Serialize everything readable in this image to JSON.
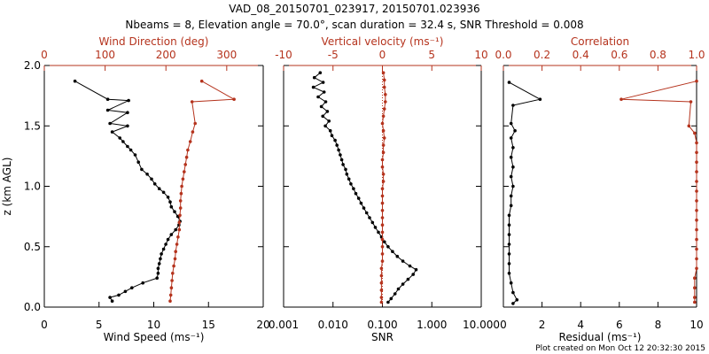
{
  "title_line1": "VAD_08_20150701_023917, 20150701.023936",
  "title_line2": "Nbeams = 8, Elevation angle = 70.0°, scan duration = 32.4 s, SNR Threshold = 0.008",
  "footer": "Plot created on Mon Oct 12 20:32:30 2015",
  "colors": {
    "black": "#000000",
    "red": "#b5331d"
  },
  "chart_data": [
    {
      "type": "scatter",
      "panel": "wind",
      "ylabel": "z (km AGL)",
      "ylim": [
        0,
        2.0
      ],
      "yticks": [
        "0.0",
        "0.5",
        "1.0",
        "1.5",
        "2.0"
      ],
      "bottom_axis": {
        "label": "Wind Speed (ms⁻¹)",
        "lim": [
          0,
          20
        ],
        "ticks": [
          "0",
          "5",
          "10",
          "15",
          "20"
        ]
      },
      "top_axis": {
        "label": "Wind Direction (deg)",
        "lim": [
          0,
          360
        ],
        "ticks": [
          "0",
          "100",
          "200",
          "300"
        ]
      },
      "series": [
        {
          "name": "Wind Speed",
          "color": "black",
          "axis": "bottom",
          "points": [
            [
              2.8,
              1.87
            ],
            [
              5.8,
              1.72
            ],
            [
              7.7,
              1.71
            ],
            [
              5.8,
              1.63
            ],
            [
              7.6,
              1.61
            ],
            [
              6.0,
              1.52
            ],
            [
              7.6,
              1.5
            ],
            [
              6.2,
              1.45
            ],
            [
              6.9,
              1.4
            ],
            [
              7.2,
              1.37
            ],
            [
              7.6,
              1.33
            ],
            [
              7.9,
              1.3
            ],
            [
              8.3,
              1.26
            ],
            [
              8.6,
              1.2
            ],
            [
              8.9,
              1.14
            ],
            [
              9.4,
              1.1
            ],
            [
              9.8,
              1.06
            ],
            [
              10.1,
              1.02
            ],
            [
              10.5,
              0.98
            ],
            [
              10.9,
              0.95
            ],
            [
              11.3,
              0.91
            ],
            [
              11.5,
              0.87
            ],
            [
              11.6,
              0.83
            ],
            [
              11.9,
              0.79
            ],
            [
              12.2,
              0.75
            ],
            [
              12.4,
              0.71
            ],
            [
              12.3,
              0.68
            ],
            [
              12.0,
              0.64
            ],
            [
              11.6,
              0.6
            ],
            [
              11.3,
              0.56
            ],
            [
              11.1,
              0.52
            ],
            [
              10.9,
              0.48
            ],
            [
              10.7,
              0.44
            ],
            [
              10.6,
              0.4
            ],
            [
              10.5,
              0.36
            ],
            [
              10.4,
              0.32
            ],
            [
              10.4,
              0.28
            ],
            [
              10.3,
              0.24
            ],
            [
              9.0,
              0.2
            ],
            [
              8.0,
              0.16
            ],
            [
              7.4,
              0.13
            ],
            [
              6.8,
              0.1
            ],
            [
              6.0,
              0.08
            ],
            [
              6.2,
              0.05
            ]
          ]
        },
        {
          "name": "Wind Direction",
          "color": "red",
          "axis": "top",
          "points": [
            [
              259,
              1.87
            ],
            [
              312,
              1.72
            ],
            [
              243,
              1.7
            ],
            [
              248,
              1.52
            ],
            [
              244,
              1.45
            ],
            [
              240,
              1.37
            ],
            [
              236,
              1.3
            ],
            [
              234,
              1.24
            ],
            [
              232,
              1.18
            ],
            [
              230,
              1.12
            ],
            [
              228,
              1.06
            ],
            [
              226,
              1.0
            ],
            [
              225,
              0.94
            ],
            [
              224,
              0.88
            ],
            [
              224,
              0.82
            ],
            [
              223,
              0.76
            ],
            [
              222,
              0.7
            ],
            [
              222,
              0.64
            ],
            [
              220,
              0.58
            ],
            [
              218,
              0.52
            ],
            [
              216,
              0.46
            ],
            [
              215,
              0.4
            ],
            [
              213,
              0.34
            ],
            [
              211,
              0.28
            ],
            [
              210,
              0.22
            ],
            [
              209,
              0.16
            ],
            [
              208,
              0.1
            ],
            [
              207,
              0.05
            ]
          ]
        }
      ]
    },
    {
      "type": "scatter",
      "panel": "vertical",
      "ylim": [
        0,
        2.0
      ],
      "bottom_axis": {
        "label": "SNR",
        "scale": "log",
        "lim": [
          0.001,
          10
        ],
        "ticks": [
          "0.001",
          "0.010",
          "0.100",
          "1.000",
          "10.000"
        ]
      },
      "top_axis": {
        "label": "Vertical velocity (ms⁻¹)",
        "lim": [
          -10,
          10
        ],
        "ticks": [
          "-10",
          "-5",
          "0",
          "5",
          "10"
        ]
      },
      "series": [
        {
          "name": "SNR",
          "color": "black",
          "axis": "bottom",
          "points": [
            [
              0.0055,
              1.94
            ],
            [
              0.0042,
              1.9
            ],
            [
              0.0063,
              1.86
            ],
            [
              0.004,
              1.82
            ],
            [
              0.0066,
              1.78
            ],
            [
              0.005,
              1.74
            ],
            [
              0.0071,
              1.7
            ],
            [
              0.0058,
              1.66
            ],
            [
              0.0077,
              1.62
            ],
            [
              0.0062,
              1.58
            ],
            [
              0.0083,
              1.54
            ],
            [
              0.007,
              1.5
            ],
            [
              0.0088,
              1.46
            ],
            [
              0.0095,
              1.42
            ],
            [
              0.011,
              1.38
            ],
            [
              0.012,
              1.34
            ],
            [
              0.013,
              1.3
            ],
            [
              0.014,
              1.26
            ],
            [
              0.015,
              1.22
            ],
            [
              0.016,
              1.18
            ],
            [
              0.018,
              1.14
            ],
            [
              0.019,
              1.1
            ],
            [
              0.021,
              1.06
            ],
            [
              0.023,
              1.02
            ],
            [
              0.026,
              0.98
            ],
            [
              0.029,
              0.94
            ],
            [
              0.033,
              0.9
            ],
            [
              0.037,
              0.86
            ],
            [
              0.042,
              0.82
            ],
            [
              0.048,
              0.78
            ],
            [
              0.055,
              0.74
            ],
            [
              0.063,
              0.7
            ],
            [
              0.072,
              0.66
            ],
            [
              0.083,
              0.62
            ],
            [
              0.096,
              0.58
            ],
            [
              0.11,
              0.54
            ],
            [
              0.13,
              0.5
            ],
            [
              0.16,
              0.46
            ],
            [
              0.2,
              0.42
            ],
            [
              0.26,
              0.38
            ],
            [
              0.36,
              0.34
            ],
            [
              0.48,
              0.31
            ],
            [
              0.42,
              0.27
            ],
            [
              0.33,
              0.23
            ],
            [
              0.26,
              0.19
            ],
            [
              0.21,
              0.15
            ],
            [
              0.18,
              0.11
            ],
            [
              0.15,
              0.07
            ],
            [
              0.13,
              0.04
            ]
          ]
        },
        {
          "name": "Vertical velocity",
          "color": "red",
          "axis": "top",
          "points": [
            [
              0.1,
              1.94
            ],
            [
              0.2,
              1.88
            ],
            [
              0.2,
              1.82
            ],
            [
              0.3,
              1.76
            ],
            [
              0.3,
              1.7
            ],
            [
              0.2,
              1.64
            ],
            [
              0.1,
              1.58
            ],
            [
              0.0,
              1.52
            ],
            [
              0.1,
              1.46
            ],
            [
              0.2,
              1.4
            ],
            [
              0.1,
              1.34
            ],
            [
              0.1,
              1.28
            ],
            [
              0.0,
              1.22
            ],
            [
              0.0,
              1.16
            ],
            [
              0.1,
              1.1
            ],
            [
              0.1,
              1.04
            ],
            [
              0.0,
              0.98
            ],
            [
              0.0,
              0.92
            ],
            [
              0.0,
              0.86
            ],
            [
              0.0,
              0.8
            ],
            [
              0.0,
              0.74
            ],
            [
              0.0,
              0.68
            ],
            [
              0.0,
              0.62
            ],
            [
              0.0,
              0.56
            ],
            [
              0.0,
              0.5
            ],
            [
              0.0,
              0.44
            ],
            [
              0.0,
              0.38
            ],
            [
              -0.1,
              0.32
            ],
            [
              -0.1,
              0.26
            ],
            [
              -0.1,
              0.2
            ],
            [
              -0.1,
              0.14
            ],
            [
              -0.1,
              0.08
            ],
            [
              -0.1,
              0.04
            ]
          ]
        }
      ]
    },
    {
      "type": "scatter",
      "panel": "correlation",
      "ylim": [
        0,
        2.0
      ],
      "bottom_axis": {
        "label": "Residual (ms⁻¹)",
        "lim": [
          0,
          10
        ],
        "ticks": [
          "0",
          "2",
          "4",
          "6",
          "8",
          "10"
        ]
      },
      "top_axis": {
        "label": "Correlation",
        "lim": [
          0,
          1.0
        ],
        "ticks": [
          "0.0",
          "0.2",
          "0.4",
          "0.6",
          "0.8",
          "1.0"
        ]
      },
      "series": [
        {
          "name": "Residual",
          "color": "black",
          "axis": "bottom",
          "points": [
            [
              0.3,
              1.86
            ],
            [
              1.9,
              1.72
            ],
            [
              0.5,
              1.67
            ],
            [
              0.4,
              1.52
            ],
            [
              0.6,
              1.46
            ],
            [
              0.4,
              1.4
            ],
            [
              0.5,
              1.32
            ],
            [
              0.4,
              1.24
            ],
            [
              0.5,
              1.16
            ],
            [
              0.4,
              1.08
            ],
            [
              0.5,
              1.0
            ],
            [
              0.4,
              0.92
            ],
            [
              0.4,
              0.84
            ],
            [
              0.3,
              0.76
            ],
            [
              0.3,
              0.68
            ],
            [
              0.3,
              0.6
            ],
            [
              0.3,
              0.52
            ],
            [
              0.3,
              0.44
            ],
            [
              0.3,
              0.36
            ],
            [
              0.3,
              0.28
            ],
            [
              0.4,
              0.2
            ],
            [
              0.5,
              0.12
            ],
            [
              0.7,
              0.06
            ],
            [
              0.5,
              0.03
            ]
          ]
        },
        {
          "name": "Correlation",
          "color": "red",
          "axis": "top",
          "points": [
            [
              1.0,
              1.87
            ],
            [
              0.61,
              1.72
            ],
            [
              0.97,
              1.7
            ],
            [
              0.96,
              1.5
            ],
            [
              0.99,
              1.44
            ],
            [
              1.0,
              1.36
            ],
            [
              1.0,
              1.28
            ],
            [
              1.0,
              1.2
            ],
            [
              1.0,
              1.12
            ],
            [
              1.0,
              1.04
            ],
            [
              1.0,
              0.96
            ],
            [
              1.0,
              0.88
            ],
            [
              1.0,
              0.8
            ],
            [
              1.0,
              0.72
            ],
            [
              1.0,
              0.64
            ],
            [
              1.0,
              0.56
            ],
            [
              1.0,
              0.48
            ],
            [
              1.0,
              0.4
            ],
            [
              1.0,
              0.32
            ],
            [
              0.99,
              0.24
            ],
            [
              0.99,
              0.16
            ],
            [
              0.99,
              0.08
            ],
            [
              0.99,
              0.04
            ]
          ]
        }
      ]
    }
  ]
}
